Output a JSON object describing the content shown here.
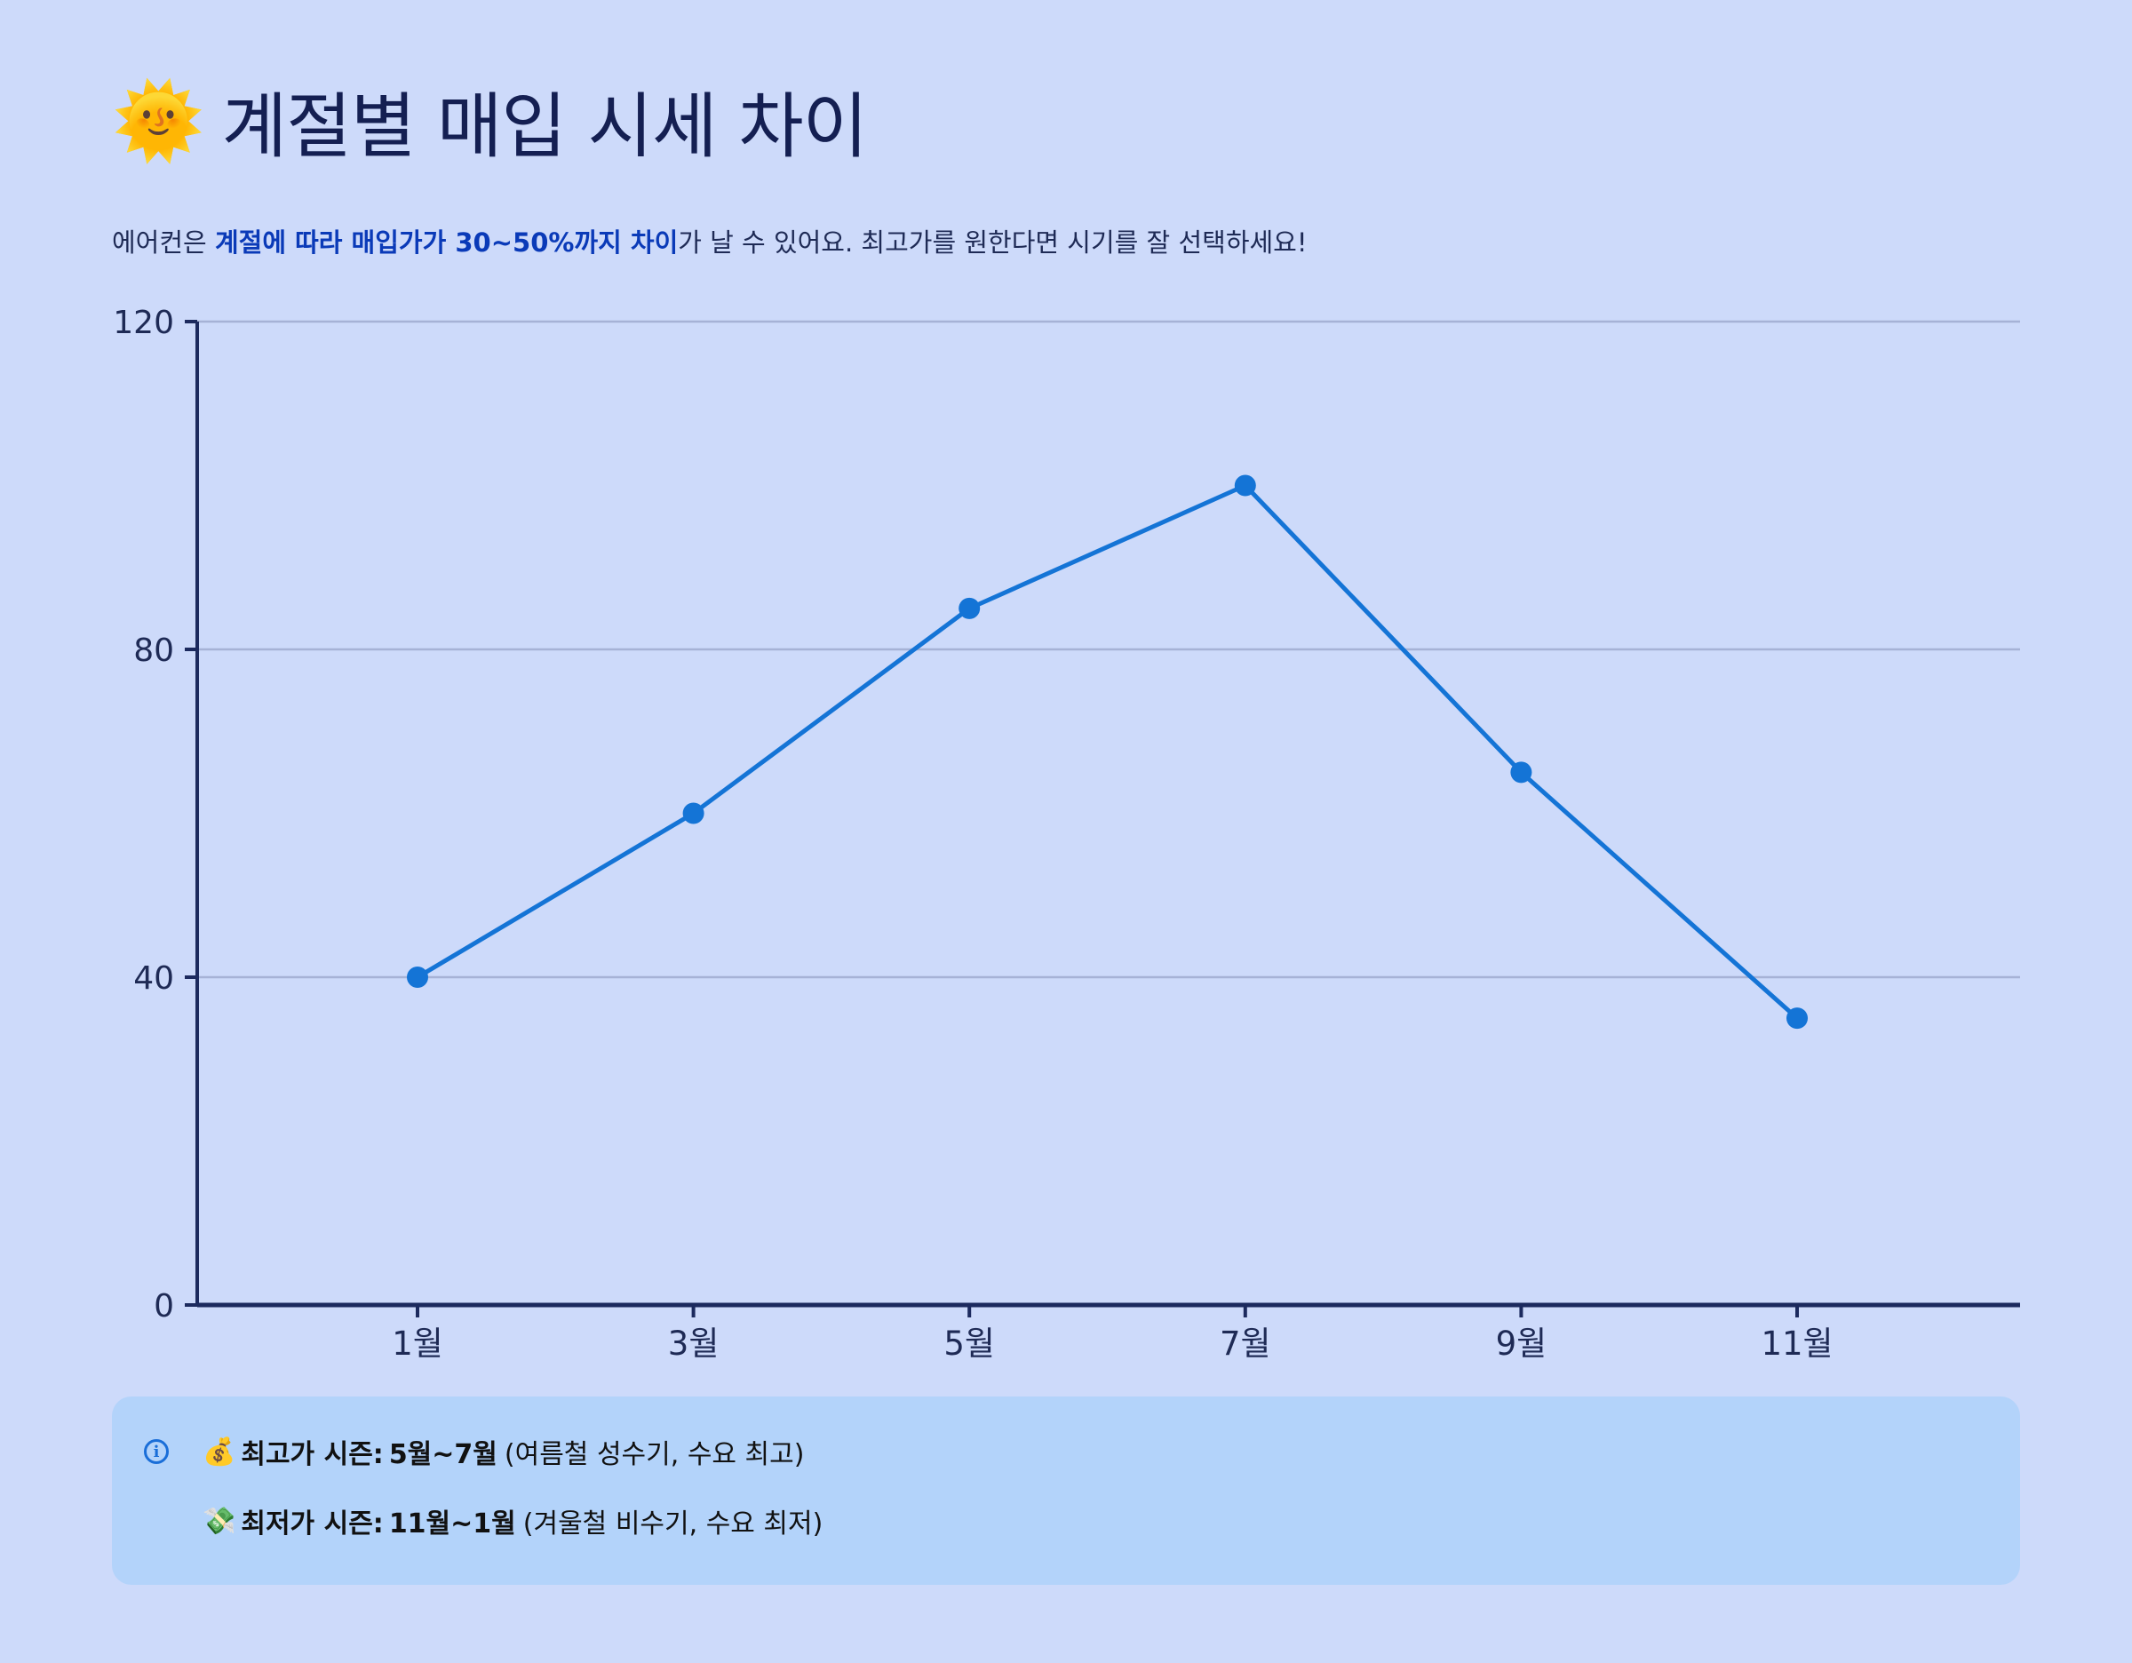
{
  "header": {
    "emoji": "🌞",
    "title": "계절별 매입 시세 차이"
  },
  "description": {
    "prefix": "에어컨은 ",
    "highlight": "계절에 따라 매입가가 30~50%까지 차이",
    "suffix": "가 날 수 있어요. 최고가를 원한다면 시기를 잘 선택하세요!"
  },
  "chart_data": {
    "type": "line",
    "categories": [
      "1월",
      "3월",
      "5월",
      "7월",
      "9월",
      "11월"
    ],
    "values": [
      40,
      60,
      85,
      100,
      65,
      35
    ],
    "y_ticks": [
      0,
      40,
      80,
      120
    ],
    "ylim": [
      0,
      120
    ],
    "grid": true,
    "line_color": "#1474d6",
    "axis_color": "#1c2a5e",
    "grid_color": "#a6b2d6"
  },
  "info": {
    "icon": "info-icon",
    "items": [
      {
        "icon": "💰",
        "label": "최고가 시즌:",
        "value": "5월~7월",
        "note": "(여름철 성수기, 수요 최고)"
      },
      {
        "icon": "💸",
        "label": "최저가 시즌:",
        "value": "11월~1월",
        "note": "(겨울철 비수기, 수요 최저)"
      }
    ]
  }
}
